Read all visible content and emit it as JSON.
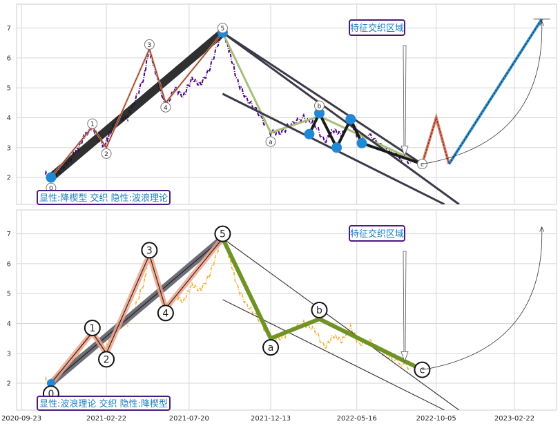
{
  "chart_data": [
    {
      "type": "line",
      "panel": "top",
      "ylim": [
        1.1,
        7.8
      ],
      "yticks": [
        "2",
        "3",
        "4",
        "5",
        "6",
        "7"
      ],
      "grid": true,
      "annotation_box": "特征交织区域",
      "caption_box": "显性:降楔型 交织 隐性:波浪理论",
      "price_color": "#4b0082",
      "price_points": [
        [
          "2020-11-05",
          2.1
        ],
        [
          "2020-11-20",
          2.0
        ],
        [
          "2020-12-05",
          2.3
        ],
        [
          "2020-12-20",
          2.6
        ],
        [
          "2021-01-03",
          3.0
        ],
        [
          "2021-01-15",
          3.4
        ],
        [
          "2021-01-28",
          3.7
        ],
        [
          "2021-02-08",
          3.4
        ],
        [
          "2021-02-18",
          3.0
        ],
        [
          "2021-03-01",
          3.5
        ],
        [
          "2021-03-15",
          4.0
        ],
        [
          "2021-04-01",
          4.0
        ],
        [
          "2021-04-15",
          4.6
        ],
        [
          "2021-05-01",
          5.4
        ],
        [
          "2021-05-10",
          6.3
        ],
        [
          "2021-05-20",
          5.6
        ],
        [
          "2021-06-01",
          4.8
        ],
        [
          "2021-06-10",
          4.4
        ],
        [
          "2021-06-25",
          5.0
        ],
        [
          "2021-07-10",
          4.7
        ],
        [
          "2021-07-25",
          5.3
        ],
        [
          "2021-08-10",
          5.1
        ],
        [
          "2021-08-25",
          5.6
        ],
        [
          "2021-09-10",
          6.5
        ],
        [
          "2021-09-20",
          6.9
        ],
        [
          "2021-10-01",
          6.2
        ],
        [
          "2021-10-15",
          5.2
        ],
        [
          "2021-11-01",
          4.6
        ],
        [
          "2021-11-20",
          4.2
        ],
        [
          "2021-12-13",
          3.5
        ],
        [
          "2022-01-01",
          3.5
        ],
        [
          "2022-01-20",
          3.8
        ],
        [
          "2022-02-10",
          4.0
        ],
        [
          "2022-03-01",
          3.8
        ],
        [
          "2022-03-20",
          3.2
        ],
        [
          "2022-04-05",
          3.6
        ],
        [
          "2022-04-20",
          3.4
        ],
        [
          "2022-05-05",
          3.9
        ],
        [
          "2022-05-20",
          3.3
        ],
        [
          "2022-06-10",
          3.4
        ],
        [
          "2022-07-01",
          3.0
        ],
        [
          "2022-07-20",
          2.8
        ],
        [
          "2022-08-20",
          2.5
        ]
      ],
      "wave_labels": [
        {
          "label": "0",
          "date": "2020-11-15",
          "value": 1.65
        },
        {
          "label": "1",
          "date": "2021-01-28",
          "value": 3.8
        },
        {
          "label": "2",
          "date": "2021-02-22",
          "value": 2.8
        },
        {
          "label": "3",
          "date": "2021-05-10",
          "value": 6.45
        },
        {
          "label": "4",
          "date": "2021-06-08",
          "value": 4.35
        },
        {
          "label": "5",
          "date": "2021-09-18",
          "value": 7.0
        },
        {
          "label": "a",
          "date": "2021-12-13",
          "value": 3.2
        },
        {
          "label": "b",
          "date": "2022-03-10",
          "value": 4.4
        },
        {
          "label": "c",
          "date": "2022-09-10",
          "value": 2.45
        }
      ],
      "main_wave": [
        [
          "2020-11-15",
          2.0
        ],
        [
          "2021-09-18",
          6.85
        ]
      ],
      "pivot_points": [
        [
          "2020-11-15",
          2.0
        ],
        [
          "2021-09-18",
          6.85
        ],
        [
          "2022-02-20",
          3.45
        ],
        [
          "2022-03-10",
          4.15
        ],
        [
          "2022-04-10",
          3.0
        ],
        [
          "2022-05-05",
          3.95
        ],
        [
          "2022-05-25",
          3.15
        ]
      ],
      "pivot_zigzag": [
        [
          "2022-02-20",
          3.45
        ],
        [
          "2022-03-10",
          4.15
        ],
        [
          "2022-04-10",
          3.0
        ],
        [
          "2022-05-05",
          3.95
        ],
        [
          "2022-05-25",
          3.15
        ],
        [
          "2022-09-10",
          2.45
        ]
      ],
      "wedge_upper": [
        [
          "2021-09-18",
          6.85
        ],
        [
          "2022-09-10",
          2.45
        ]
      ],
      "wedge_lower": [
        [
          "2021-09-18",
          4.8
        ],
        [
          "2022-10-20",
          1.1
        ]
      ],
      "wedge_extended": [
        [
          "2021-09-18",
          6.85
        ],
        [
          "2022-11-15",
          1.1
        ]
      ],
      "impulse_path": [
        [
          "2020-11-15",
          2.0
        ],
        [
          "2021-01-28",
          3.7
        ],
        [
          "2021-02-22",
          3.0
        ],
        [
          "2021-05-10",
          6.3
        ],
        [
          "2021-06-08",
          4.5
        ],
        [
          "2021-09-18",
          6.85
        ]
      ],
      "correction_path": [
        [
          "2021-09-18",
          6.85
        ],
        [
          "2021-12-13",
          3.5
        ],
        [
          "2022-03-10",
          4.05
        ],
        [
          "2022-09-10",
          2.45
        ]
      ],
      "projection_red": [
        [
          "2022-09-10",
          2.45
        ],
        [
          "2022-10-05",
          4.0
        ],
        [
          "2022-10-28",
          2.45
        ]
      ],
      "projection_blue": [
        [
          "2022-10-28",
          2.45
        ],
        [
          "2023-04-12",
          7.3
        ]
      ],
      "curve_end": [
        "2023-04-12",
        7.3
      ]
    },
    {
      "type": "line",
      "panel": "bottom",
      "ylim": [
        1.1,
        7.8
      ],
      "yticks": [
        "2",
        "3",
        "4",
        "5",
        "6",
        "7"
      ],
      "xticks": [
        "2020-09-23",
        "2021-02-22",
        "2021-07-20",
        "2021-12-13",
        "2022-05-16",
        "2022-10-05",
        "2023-02-22"
      ],
      "grid": true,
      "annotation_box": "特征交织区域",
      "caption_box": "显性:波浪理论 交织 隐性:降楔型",
      "price_color": "#f0b030",
      "price_points": [
        [
          "2020-11-05",
          2.1
        ],
        [
          "2020-11-20",
          2.0
        ],
        [
          "2020-12-05",
          2.3
        ],
        [
          "2020-12-20",
          2.6
        ],
        [
          "2021-01-03",
          3.0
        ],
        [
          "2021-01-15",
          3.4
        ],
        [
          "2021-01-28",
          3.7
        ],
        [
          "2021-02-08",
          3.4
        ],
        [
          "2021-02-18",
          3.0
        ],
        [
          "2021-03-01",
          3.5
        ],
        [
          "2021-03-15",
          4.0
        ],
        [
          "2021-04-01",
          4.0
        ],
        [
          "2021-04-15",
          4.6
        ],
        [
          "2021-05-01",
          5.4
        ],
        [
          "2021-05-10",
          6.3
        ],
        [
          "2021-05-20",
          5.6
        ],
        [
          "2021-06-01",
          4.8
        ],
        [
          "2021-06-10",
          4.4
        ],
        [
          "2021-06-25",
          5.0
        ],
        [
          "2021-07-10",
          4.7
        ],
        [
          "2021-07-25",
          5.3
        ],
        [
          "2021-08-10",
          5.1
        ],
        [
          "2021-08-25",
          5.6
        ],
        [
          "2021-09-10",
          6.5
        ],
        [
          "2021-09-20",
          6.9
        ],
        [
          "2021-10-01",
          6.2
        ],
        [
          "2021-10-15",
          5.2
        ],
        [
          "2021-11-01",
          4.6
        ],
        [
          "2021-11-20",
          4.2
        ],
        [
          "2021-12-13",
          3.5
        ],
        [
          "2022-01-01",
          3.5
        ],
        [
          "2022-01-20",
          3.8
        ],
        [
          "2022-02-10",
          4.0
        ],
        [
          "2022-03-01",
          3.8
        ],
        [
          "2022-03-20",
          3.2
        ],
        [
          "2022-04-05",
          3.6
        ],
        [
          "2022-04-20",
          3.4
        ],
        [
          "2022-05-05",
          3.9
        ],
        [
          "2022-05-20",
          3.3
        ],
        [
          "2022-06-10",
          3.4
        ],
        [
          "2022-07-01",
          3.0
        ],
        [
          "2022-07-20",
          2.8
        ],
        [
          "2022-08-20",
          2.5
        ]
      ],
      "wave_labels": [
        {
          "label": "0",
          "date": "2020-11-15",
          "value": 1.65
        },
        {
          "label": "1",
          "date": "2021-01-28",
          "value": 3.85
        },
        {
          "label": "2",
          "date": "2021-02-22",
          "value": 2.8
        },
        {
          "label": "3",
          "date": "2021-05-10",
          "value": 6.45
        },
        {
          "label": "4",
          "date": "2021-06-08",
          "value": 4.35
        },
        {
          "label": "5",
          "date": "2021-09-18",
          "value": 7.0
        },
        {
          "label": "a",
          "date": "2021-12-13",
          "value": 3.2
        },
        {
          "label": "b",
          "date": "2022-03-10",
          "value": 4.45
        },
        {
          "label": "c",
          "date": "2022-09-10",
          "value": 2.45
        }
      ],
      "main_wave": [
        [
          "2020-11-15",
          2.0
        ],
        [
          "2021-09-18",
          6.85
        ]
      ],
      "impulse_path": [
        [
          "2020-11-15",
          2.0
        ],
        [
          "2021-01-28",
          3.7
        ],
        [
          "2021-02-22",
          3.0
        ],
        [
          "2021-05-10",
          6.3
        ],
        [
          "2021-06-08",
          4.5
        ],
        [
          "2021-09-18",
          6.85
        ]
      ],
      "correction_path": [
        [
          "2021-09-18",
          6.85
        ],
        [
          "2021-12-13",
          3.5
        ],
        [
          "2022-03-10",
          4.15
        ],
        [
          "2022-09-10",
          2.45
        ]
      ],
      "wedge_upper": [
        [
          "2021-09-18",
          6.85
        ],
        [
          "2022-11-15",
          1.1
        ]
      ],
      "wedge_lower": [
        [
          "2021-09-18",
          4.8
        ],
        [
          "2022-10-20",
          1.1
        ]
      ],
      "curve_end": [
        "2023-04-12",
        7.3
      ]
    }
  ]
}
